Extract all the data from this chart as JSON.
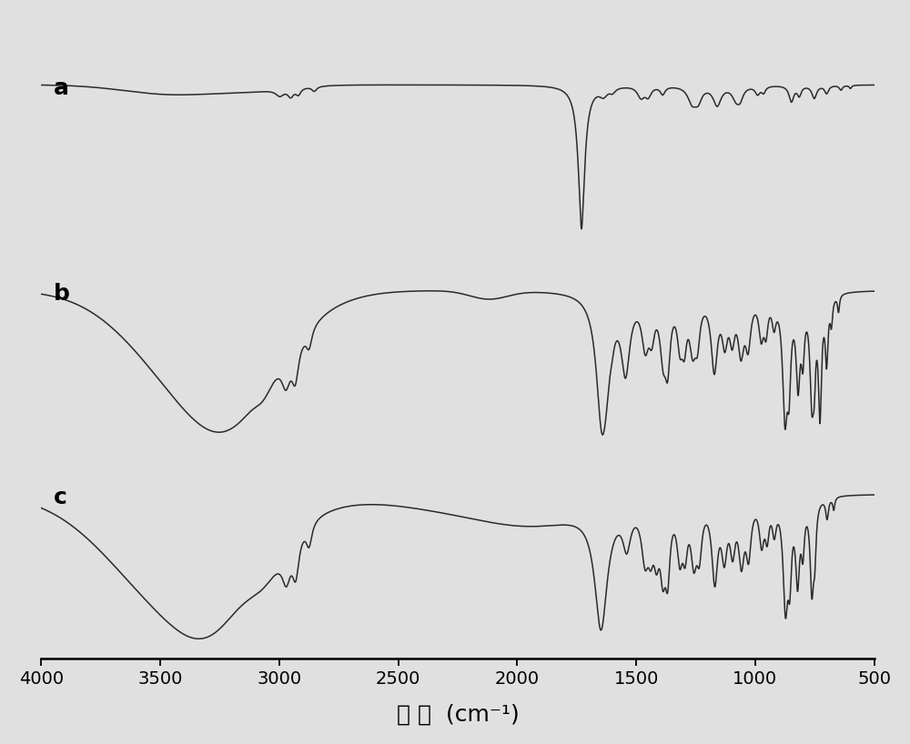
{
  "xlabel": "波 数  (cm⁻¹)",
  "xmin": 500,
  "xmax": 4000,
  "background_color": "#e0e0e0",
  "line_color": "#2a2a2a",
  "label_a": "a",
  "label_b": "b",
  "label_c": "c",
  "label_fontsize": 18,
  "xlabel_fontsize": 18,
  "tick_fontsize": 14,
  "xticks": [
    4000,
    3500,
    3000,
    2500,
    2000,
    1500,
    1000,
    500
  ]
}
